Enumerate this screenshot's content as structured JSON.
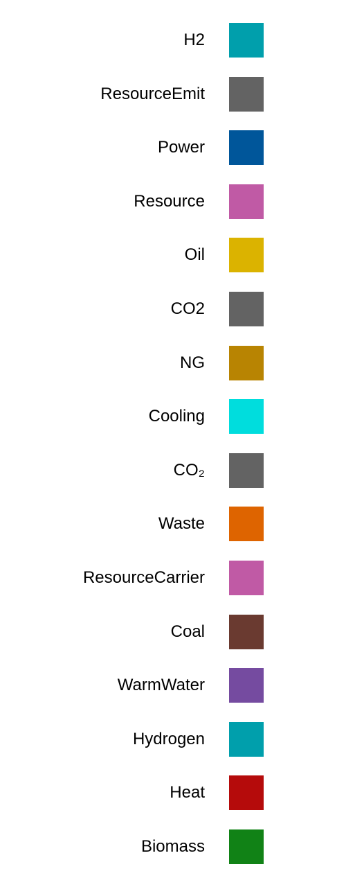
{
  "chart_data": {
    "type": "legend",
    "entries": [
      {
        "label": "H2",
        "color": "#009fac"
      },
      {
        "label": "ResourceEmit",
        "color": "#636363"
      },
      {
        "label": "Power",
        "color": "#00569a"
      },
      {
        "label": "Resource",
        "color": "#c05aa5"
      },
      {
        "label": "Oil",
        "color": "#dbb300"
      },
      {
        "label": "CO2",
        "color": "#636363"
      },
      {
        "label": "NG",
        "color": "#b88402"
      },
      {
        "label": "Cooling",
        "color": "#00dddd"
      },
      {
        "label": "CO₂",
        "color": "#636363"
      },
      {
        "label": "Waste",
        "color": "#de6400"
      },
      {
        "label": "ResourceCarrier",
        "color": "#c05aa5"
      },
      {
        "label": "Coal",
        "color": "#6a3a30"
      },
      {
        "label": "WarmWater",
        "color": "#754ba0"
      },
      {
        "label": "Hydrogen",
        "color": "#009fac"
      },
      {
        "label": "Heat",
        "color": "#b50b0b"
      },
      {
        "label": "Biomass",
        "color": "#118216"
      }
    ]
  }
}
